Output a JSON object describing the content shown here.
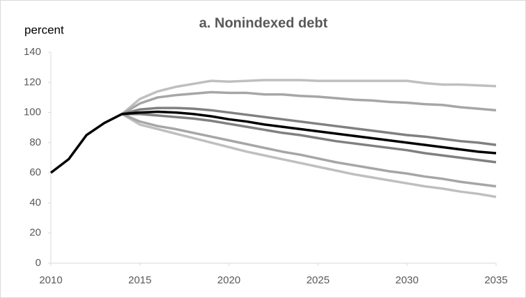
{
  "chart_data": {
    "type": "line",
    "title": "a. Nonindexed debt",
    "y_label": "percent",
    "x": [
      2010,
      2011,
      2012,
      2013,
      2014,
      2015,
      2016,
      2017,
      2018,
      2019,
      2020,
      2021,
      2022,
      2023,
      2024,
      2025,
      2026,
      2027,
      2028,
      2029,
      2030,
      2031,
      2032,
      2033,
      2034,
      2035
    ],
    "series": [
      {
        "color": "#bfbfbf",
        "values": [
          null,
          null,
          null,
          null,
          99,
          109,
          114,
          117,
          119,
          121,
          120.5,
          121,
          121.5,
          121.5,
          121.5,
          121,
          121,
          121,
          121,
          121,
          121,
          119.5,
          118.5,
          118.5,
          118,
          117.5
        ]
      },
      {
        "color": "#bfbfbf",
        "values": [
          null,
          null,
          null,
          null,
          99,
          92,
          89,
          86,
          83,
          80,
          77,
          74,
          71.5,
          69,
          66.5,
          64,
          61.5,
          59,
          57,
          55,
          53,
          51,
          49.5,
          47.5,
          46,
          44
        ]
      },
      {
        "color": "#a6a6a6",
        "values": [
          null,
          null,
          null,
          null,
          99,
          106,
          110,
          111.5,
          112.5,
          113.5,
          113,
          113,
          112,
          112,
          111,
          110.5,
          109.5,
          108.5,
          108,
          107,
          106.5,
          105.5,
          105,
          103.5,
          102.5,
          101.5
        ]
      },
      {
        "color": "#a6a6a6",
        "values": [
          null,
          null,
          null,
          null,
          99,
          94,
          91,
          89,
          86.5,
          84,
          81.5,
          79,
          76.5,
          74,
          72,
          69.5,
          67,
          65,
          63,
          61,
          59.5,
          57.5,
          56,
          54,
          52.5,
          51
        ]
      },
      {
        "color": "#808080",
        "values": [
          null,
          null,
          null,
          null,
          99,
          102,
          103,
          103,
          102.5,
          101.5,
          100,
          98.5,
          97,
          95.5,
          94,
          92.5,
          91,
          89.5,
          88,
          86.5,
          85,
          84,
          82.5,
          81,
          80,
          78.5
        ]
      },
      {
        "color": "#808080",
        "values": [
          null,
          null,
          null,
          null,
          99,
          99,
          98,
          97,
          96,
          94.5,
          92.5,
          90.5,
          88.5,
          86.5,
          85,
          83,
          81,
          79.5,
          78,
          76.5,
          75,
          73,
          71.5,
          70,
          68.5,
          67
        ]
      },
      {
        "color": "#000000",
        "values": [
          60,
          69,
          85,
          93,
          99,
          100,
          100.5,
          100,
          99,
          97.5,
          95.5,
          94,
          92,
          90.5,
          89,
          87.5,
          86,
          84.5,
          83,
          81.5,
          80,
          78.5,
          77,
          75.5,
          74,
          73
        ]
      }
    ],
    "xlim": [
      2010,
      2035
    ],
    "xticks": [
      2010,
      2015,
      2020,
      2025,
      2030,
      2035
    ],
    "ylim": [
      0,
      140
    ],
    "yticks": [
      0,
      20,
      40,
      60,
      80,
      100,
      120,
      140
    ],
    "grid": false
  }
}
